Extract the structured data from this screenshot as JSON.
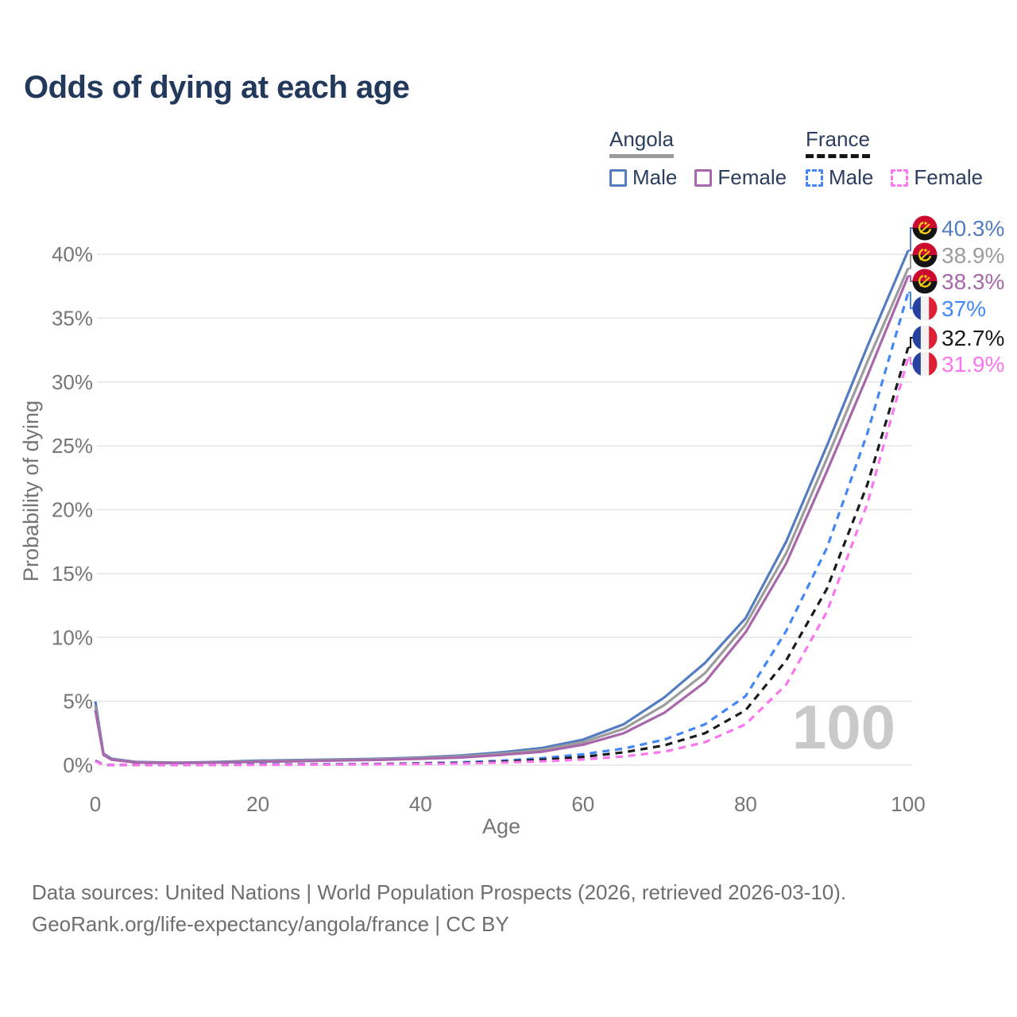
{
  "title": "Odds of dying at each age",
  "legend": {
    "angola": {
      "label": "Angola",
      "male_label": "Male",
      "female_label": "Female"
    },
    "france": {
      "label": "France",
      "male_label": "Male",
      "female_label": "Female"
    }
  },
  "footer": {
    "line1": "Data sources: United Nations | World Population Prospects (2026, retrieved 2026-03-10).",
    "line2": "GeoRank.org/life-expectancy/angola/france | CC BY"
  },
  "colors": {
    "title_text": "#22395c",
    "legend_text": "#2c3e5d",
    "axis_text": "#757575",
    "gridline": "#e4e4e4",
    "watermark": "#c9c9c9",
    "footer_text": "#6e6e6e"
  },
  "icons": {
    "angola_flag": {
      "red": "#cc092f",
      "black": "#141414",
      "gold": "#f4cd13"
    },
    "france_flag": {
      "blue": "#27419f",
      "white": "#f2f2f2",
      "red": "#dd2033"
    }
  },
  "chart_data": {
    "type": "line",
    "title": "Odds of dying at each age",
    "xlabel": "Age",
    "ylabel": "Probability of dying",
    "xlim": [
      0,
      100
    ],
    "ylim": [
      0,
      40
    ],
    "x_ticks": [
      0,
      20,
      40,
      60,
      80,
      100
    ],
    "y_ticks_percent": [
      0,
      5,
      10,
      15,
      20,
      25,
      30,
      35,
      40
    ],
    "grid": true,
    "legend_position": "top-right",
    "annotation": "100",
    "ages": [
      0,
      1,
      2,
      5,
      10,
      15,
      20,
      25,
      30,
      35,
      40,
      45,
      50,
      55,
      60,
      65,
      70,
      75,
      80,
      85,
      90,
      95,
      100
    ],
    "series": [
      {
        "name": "Angola Male",
        "country": "Angola",
        "sex": "Male",
        "line": "solid",
        "color": "#537dc0",
        "end_label": "40.3%",
        "end_value": 40.3,
        "values": [
          5.0,
          0.9,
          0.5,
          0.25,
          0.2,
          0.25,
          0.35,
          0.4,
          0.45,
          0.5,
          0.6,
          0.75,
          1.0,
          1.35,
          2.0,
          3.2,
          5.3,
          8.0,
          11.5,
          17.5,
          25.0,
          32.8,
          40.3
        ]
      },
      {
        "name": "Angola Both sexes",
        "country": "Angola",
        "sex": "Both",
        "line": "solid",
        "color": "#9c9c9c",
        "end_label": "38.9%",
        "end_value": 38.9,
        "values": [
          4.65,
          0.85,
          0.45,
          0.22,
          0.18,
          0.22,
          0.3,
          0.36,
          0.4,
          0.46,
          0.55,
          0.68,
          0.9,
          1.2,
          1.8,
          2.85,
          4.7,
          7.2,
          11.0,
          16.6,
          24.0,
          31.6,
          38.9
        ]
      },
      {
        "name": "Angola Female",
        "country": "Angola",
        "sex": "Female",
        "line": "solid",
        "color": "#a866ab",
        "end_label": "38.3%",
        "end_value": 38.3,
        "values": [
          4.3,
          0.8,
          0.42,
          0.2,
          0.16,
          0.2,
          0.26,
          0.31,
          0.36,
          0.41,
          0.5,
          0.6,
          0.8,
          1.05,
          1.6,
          2.5,
          4.1,
          6.5,
          10.4,
          15.8,
          23.0,
          30.5,
          38.3
        ]
      },
      {
        "name": "France Male",
        "country": "France",
        "sex": "Male",
        "line": "dashed",
        "color": "#4387f4",
        "end_label": "37%",
        "end_value": 37.0,
        "values": [
          0.35,
          0.03,
          0.02,
          0.01,
          0.01,
          0.03,
          0.06,
          0.07,
          0.08,
          0.1,
          0.15,
          0.22,
          0.35,
          0.55,
          0.85,
          1.3,
          2.0,
          3.2,
          5.4,
          10.5,
          17.0,
          26.0,
          37.0
        ]
      },
      {
        "name": "France Both sexes",
        "country": "France",
        "sex": "Both",
        "line": "dashed",
        "color": "#1a1a1a",
        "end_label": "32.7%",
        "end_value": 32.7,
        "values": [
          0.33,
          0.03,
          0.02,
          0.01,
          0.01,
          0.02,
          0.04,
          0.05,
          0.06,
          0.08,
          0.12,
          0.17,
          0.27,
          0.42,
          0.65,
          1.0,
          1.55,
          2.5,
          4.3,
          8.2,
          13.8,
          22.0,
          32.7
        ]
      },
      {
        "name": "France Female",
        "country": "France",
        "sex": "Female",
        "line": "dashed",
        "color": "#fb76ee",
        "end_label": "31.9%",
        "end_value": 31.9,
        "values": [
          0.3,
          0.02,
          0.02,
          0.01,
          0.01,
          0.02,
          0.02,
          0.03,
          0.05,
          0.06,
          0.09,
          0.13,
          0.2,
          0.3,
          0.45,
          0.68,
          1.05,
          1.8,
          3.2,
          6.3,
          12.0,
          20.5,
          31.9
        ]
      }
    ]
  }
}
